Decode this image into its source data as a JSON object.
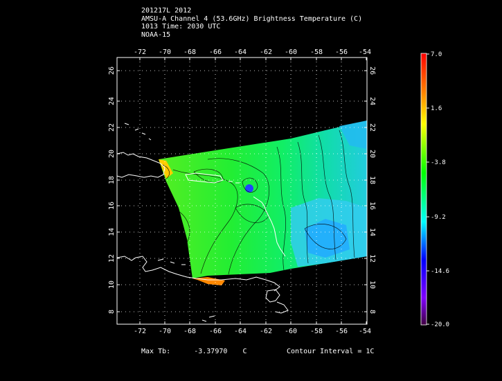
{
  "header": {
    "line1": "201217L 2012",
    "line2": "AMSU-A Channel 4 (53.6GHz) Brightness Temperature (C)",
    "line3": "1013 Time: 2030 UTC",
    "line4": "NOAA-15"
  },
  "axes": {
    "lon_ticks": [
      "-72",
      "-70",
      "-68",
      "-66",
      "-64",
      "-62",
      "-60",
      "-58",
      "-56",
      "-54"
    ],
    "lat_ticks": [
      "8",
      "10",
      "12",
      "14",
      "16",
      "18",
      "20",
      "22",
      "24",
      "26"
    ]
  },
  "colorbar": {
    "labels": [
      "7.0",
      "1.6",
      "-3.8",
      "-9.2",
      "-14.6",
      "-20.0"
    ],
    "colors": [
      "#ff0000",
      "#ff8000",
      "#ffff00",
      "#00ff00",
      "#00ffff",
      "#0000ff",
      "#8000ff",
      "#400040"
    ]
  },
  "footer": {
    "max_tb_label": "Max Tb:",
    "max_tb_value": "-3.37970",
    "max_tb_unit": "C",
    "contour_interval": "Contour Interval = 1C"
  },
  "map": {
    "frame_color": "#ffffff",
    "land_outline_color": "#ffffff",
    "swath_base_color": "#22dd33",
    "warm_color": "#ffcc00",
    "cold_color": "#33bbff"
  }
}
